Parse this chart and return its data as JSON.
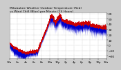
{
  "bg_color": "#cccccc",
  "plot_bg_color": "#ffffff",
  "red_color": "#cc0000",
  "blue_color": "#0000cc",
  "ylim": [
    -25,
    62
  ],
  "xlim": [
    0,
    1440
  ],
  "grid_color": "#999999",
  "y_ticks": [
    -20,
    -10,
    0,
    10,
    20,
    30,
    40,
    50,
    60
  ],
  "y_tick_fontsize": 3.2,
  "x_tick_fontsize": 2.8,
  "title_fontsize": 3.2,
  "x_tick_positions": [
    0,
    120,
    240,
    360,
    480,
    600,
    720,
    840,
    960,
    1080,
    1200,
    1320,
    1440
  ],
  "x_tick_labels": [
    "12a",
    "2a",
    "4a",
    "6a",
    "8a",
    "10a",
    "12p",
    "2p",
    "4p",
    "6p",
    "8p",
    "10p",
    "12a"
  ]
}
